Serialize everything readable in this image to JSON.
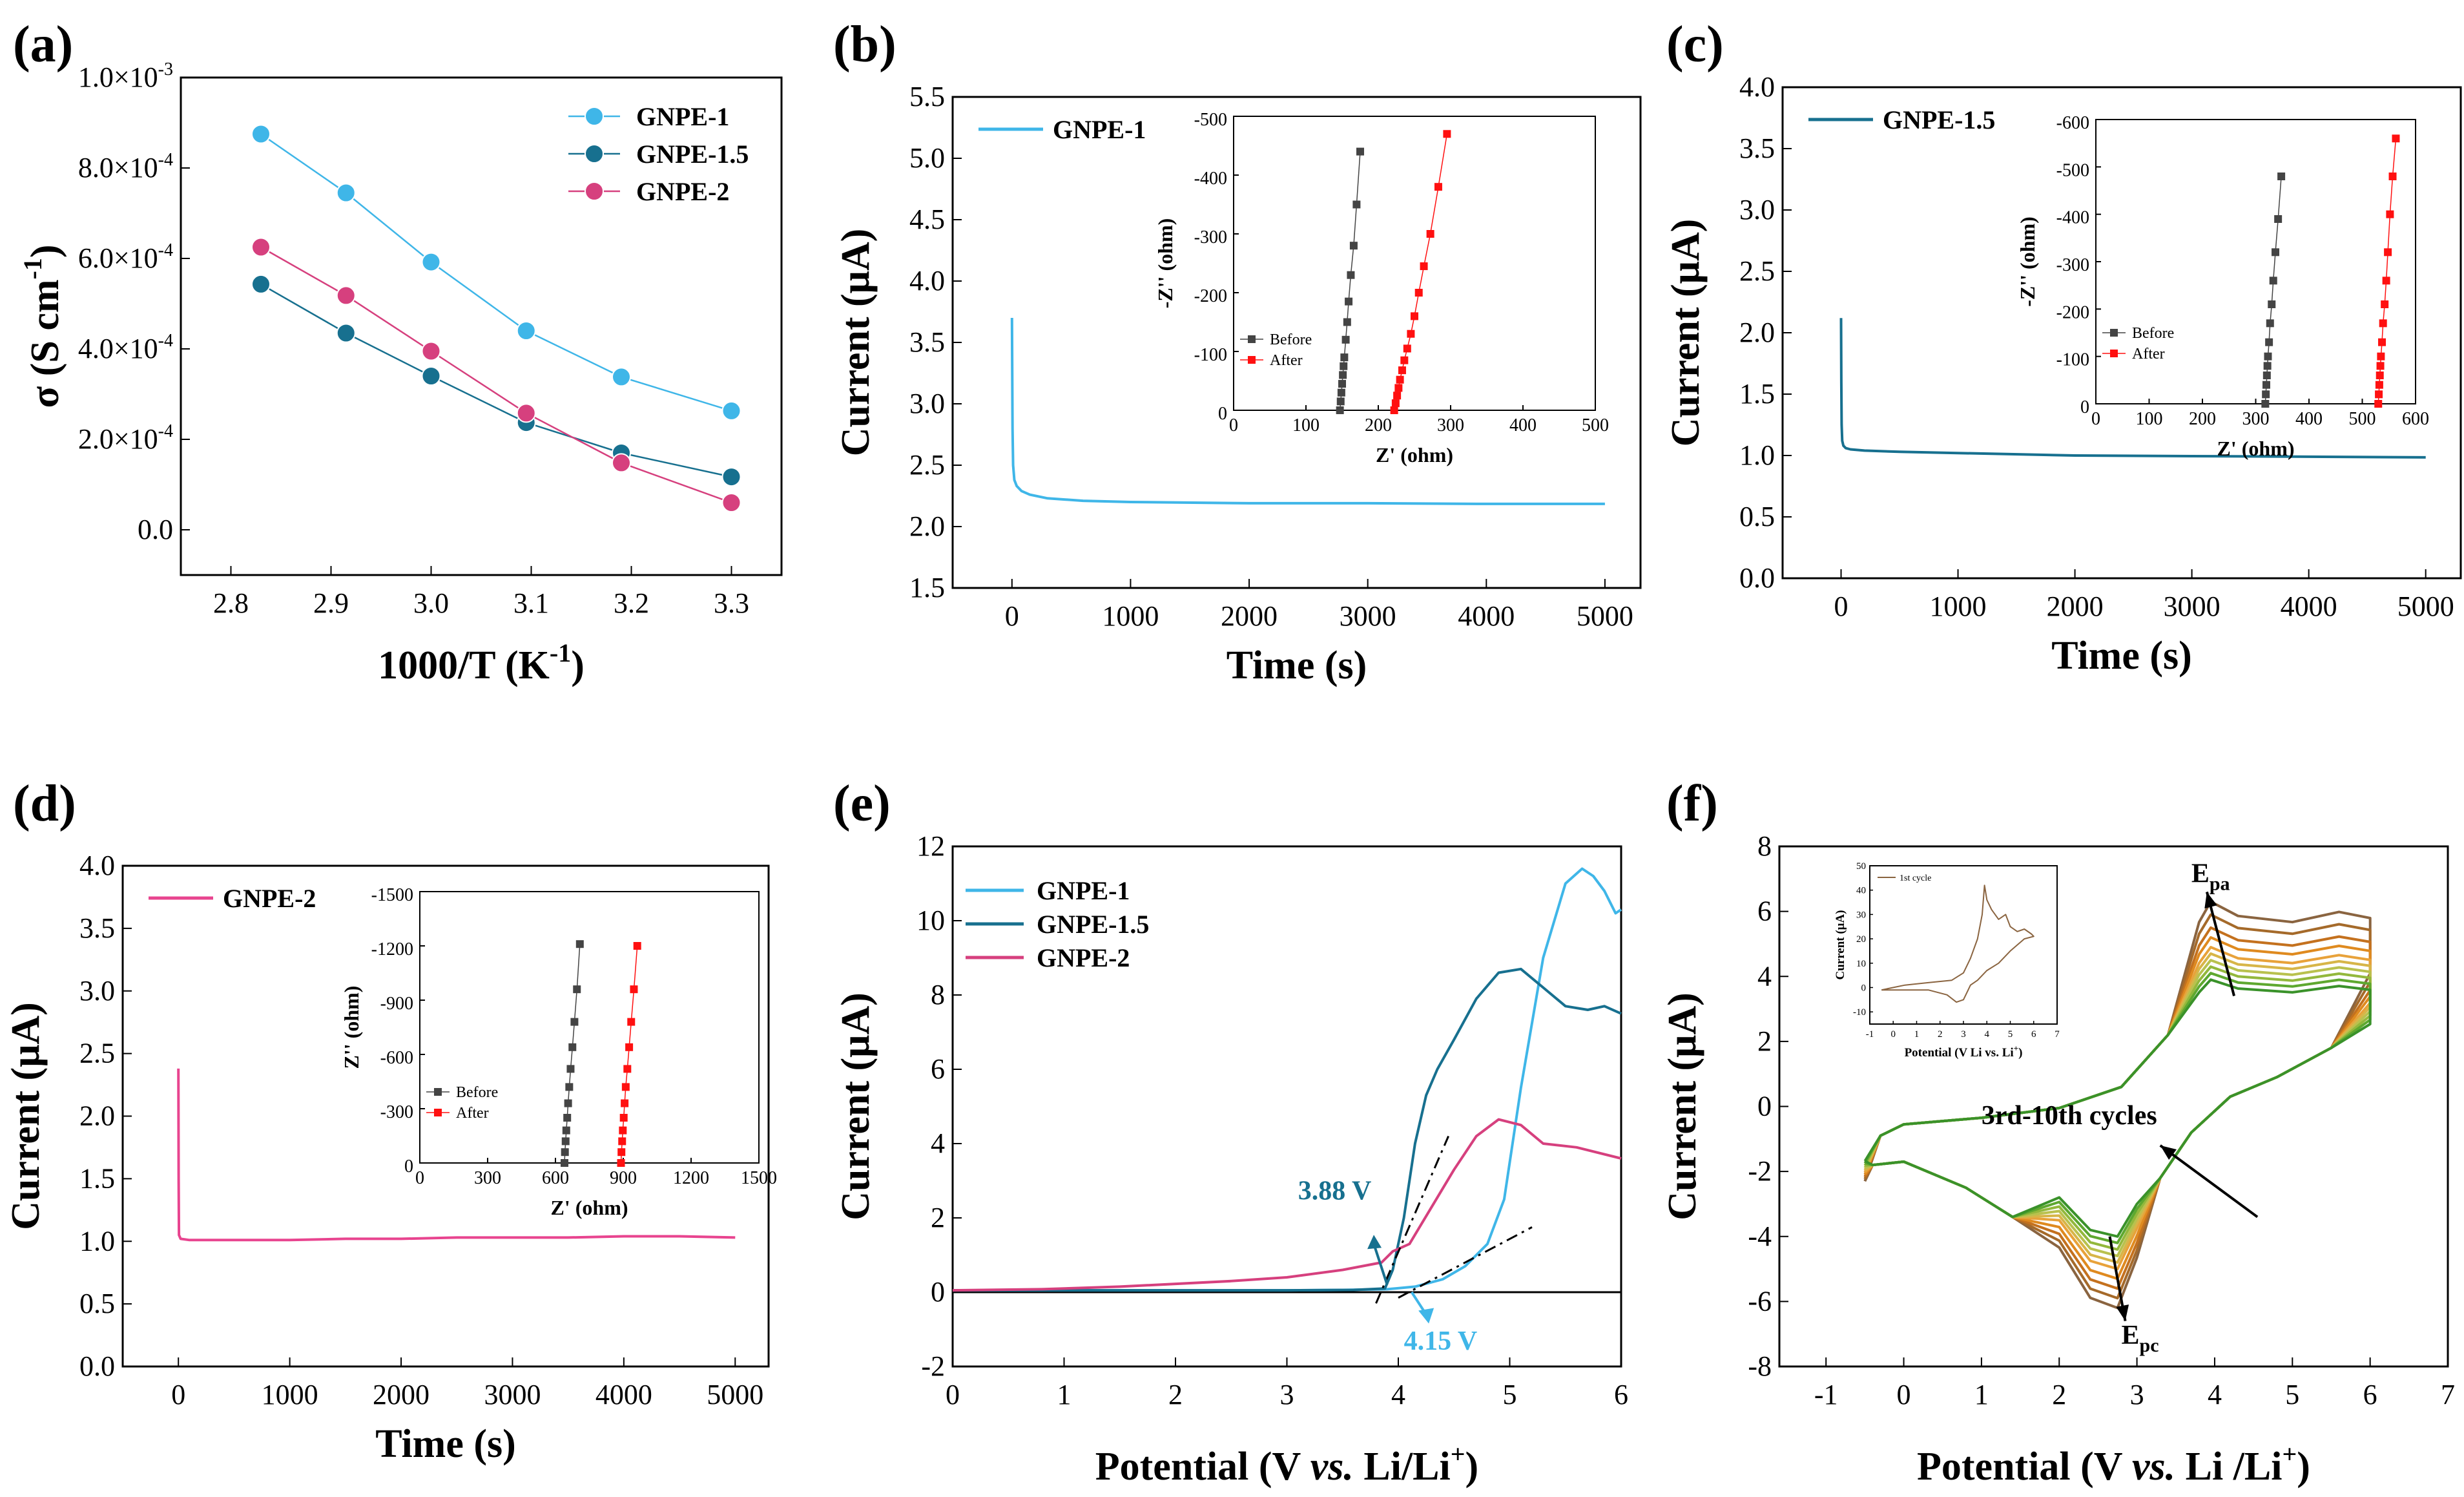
{
  "chart_data": [
    {
      "panel": "(a)",
      "type": "line",
      "xlabel": "1000/T (K",
      "xlabel_sup": "-1",
      "xlabel_tail": ")",
      "ylabel": "σ (S cm",
      "ylabel_sup": "-1",
      "ylabel_tail": ")",
      "xlim": [
        2.75,
        3.35
      ],
      "ylim": [
        -0.0001,
        0.001
      ],
      "xticks": [
        2.8,
        2.9,
        3.0,
        3.1,
        3.2,
        3.3
      ],
      "xtick_labels": [
        "2.8",
        "2.9",
        "3.0",
        "3.1",
        "3.2",
        "3.3"
      ],
      "yticks": [
        0,
        0.0002,
        0.0004,
        0.0006,
        0.0008,
        0.001
      ],
      "ytick_labels": [
        "0.0",
        "2.0×10",
        "4.0×10",
        "6.0×10",
        "8.0×10",
        "1.0×10"
      ],
      "ytick_exps": [
        "",
        "-4",
        "-4",
        "-4",
        "-4",
        "-3"
      ],
      "x": [
        2.83,
        2.915,
        3.0,
        3.095,
        3.19,
        3.3
      ],
      "series": [
        {
          "name": "GNPE-1",
          "color": "#3fb6e8",
          "values": [
            0.000875,
            0.000745,
            0.000592,
            0.00044,
            0.000338,
            0.000263
          ]
        },
        {
          "name": "GNPE-1.5",
          "color": "#17708f",
          "values": [
            0.000543,
            0.000435,
            0.00034,
            0.000237,
            0.00017,
            0.000117
          ]
        },
        {
          "name": "GNPE-2",
          "color": "#d6407e",
          "values": [
            0.000625,
            0.000518,
            0.000395,
            0.000258,
            0.000148,
            6e-05
          ]
        }
      ],
      "legend_position": "top-right"
    },
    {
      "panel": "(b)",
      "type": "line",
      "xlabel": "Time (s)",
      "ylabel": "Current (μA)",
      "xlim": [
        -500,
        5300
      ],
      "ylim": [
        1.5,
        5.5
      ],
      "xticks": [
        0,
        1000,
        2000,
        3000,
        4000,
        5000
      ],
      "xtick_labels": [
        "0",
        "1000",
        "2000",
        "3000",
        "4000",
        "5000"
      ],
      "yticks": [
        1.5,
        2.0,
        2.5,
        3.0,
        3.5,
        4.0,
        4.5,
        5.0,
        5.5
      ],
      "ytick_labels": [
        "1.5",
        "2.0",
        "2.5",
        "3.0",
        "3.5",
        "4.0",
        "4.5",
        "5.0",
        "5.5"
      ],
      "series": [
        {
          "name": "GNPE-1",
          "color": "#3fb6e8",
          "x": [
            0,
            2,
            5,
            10,
            20,
            40,
            80,
            150,
            300,
            600,
            1000,
            2000,
            3000,
            4000,
            5000
          ],
          "values": [
            3.7,
            3.3,
            2.8,
            2.5,
            2.38,
            2.33,
            2.29,
            2.26,
            2.23,
            2.21,
            2.2,
            2.19,
            2.19,
            2.185,
            2.185
          ]
        }
      ],
      "legend_position": "top-left",
      "inset": {
        "xlabel": "Z' (ohm)",
        "ylabel": "-Z'' (ohm)",
        "xlim": [
          0,
          500
        ],
        "ylim": [
          0,
          -500
        ],
        "xticks": [
          0,
          100,
          200,
          300,
          400,
          500
        ],
        "xtick_labels": [
          "0",
          "100",
          "200",
          "300",
          "400",
          "500"
        ],
        "yticks": [
          0,
          -100,
          -200,
          -300,
          -400,
          -500
        ],
        "ytick_labels": [
          "0",
          "-100",
          "-200",
          "-300",
          "-400",
          "-500"
        ],
        "series": [
          {
            "name": "Before",
            "color": "#444444",
            "x": [
              147,
              148,
              149,
              150,
              151,
              152,
              153,
              155,
              157,
              159,
              162,
              166,
              170,
              175
            ],
            "values": [
              0,
              -15,
              -30,
              -45,
              -60,
              -75,
              -90,
              -120,
              -150,
              -185,
              -230,
              -280,
              -350,
              -440
            ]
          },
          {
            "name": "After",
            "color": "#ff1010",
            "x": [
              222,
              224,
              226,
              228,
              230,
              233,
              236,
              240,
              245,
              250,
              256,
              263,
              272,
              283,
              295
            ],
            "values": [
              0,
              -12,
              -25,
              -38,
              -52,
              -68,
              -85,
              -105,
              -130,
              -160,
              -200,
              -245,
              -300,
              -380,
              -470
            ]
          }
        ]
      }
    },
    {
      "panel": "(c)",
      "type": "line",
      "xlabel": "Time (s)",
      "ylabel": "Current (μA)",
      "xlim": [
        -500,
        5300
      ],
      "ylim": [
        0,
        4.0
      ],
      "xticks": [
        0,
        1000,
        2000,
        3000,
        4000,
        5000
      ],
      "xtick_labels": [
        "0",
        "1000",
        "2000",
        "3000",
        "4000",
        "5000"
      ],
      "yticks": [
        0,
        0.5,
        1.0,
        1.5,
        2.0,
        2.5,
        3.0,
        3.5,
        4.0
      ],
      "ytick_labels": [
        "0.0",
        "0.5",
        "1.0",
        "1.5",
        "2.0",
        "2.5",
        "3.0",
        "3.5",
        "4.0"
      ],
      "series": [
        {
          "name": "GNPE-1.5",
          "color": "#17708f",
          "x": [
            0,
            2,
            5,
            10,
            20,
            40,
            80,
            200,
            500,
            1000,
            2000,
            3000,
            4000,
            5000
          ],
          "values": [
            2.12,
            1.6,
            1.25,
            1.12,
            1.08,
            1.06,
            1.05,
            1.04,
            1.03,
            1.02,
            1.0,
            0.995,
            0.99,
            0.985
          ]
        }
      ],
      "legend_position": "top-left",
      "inset": {
        "xlabel": "Z' (ohm)",
        "ylabel": "-Z'' (ohm)",
        "xlim": [
          0,
          600
        ],
        "ylim": [
          0,
          -600
        ],
        "xticks": [
          0,
          100,
          200,
          300,
          400,
          500,
          600
        ],
        "xtick_labels": [
          "0",
          "100",
          "200",
          "300",
          "400",
          "500",
          "600"
        ],
        "yticks": [
          0,
          -100,
          -200,
          -300,
          -400,
          -500,
          -600
        ],
        "ytick_labels": [
          "0",
          "-100",
          "-200",
          "-300",
          "-400",
          "-500",
          "-600"
        ],
        "series": [
          {
            "name": "Before",
            "color": "#444444",
            "x": [
              318,
              319,
              320,
              321,
              322,
              323,
              325,
              327,
              330,
              333,
              337,
              342,
              348
            ],
            "values": [
              0,
              -20,
              -40,
              -60,
              -80,
              -100,
              -130,
              -170,
              -210,
              -260,
              -320,
              -390,
              -480
            ]
          },
          {
            "name": "After",
            "color": "#ff1010",
            "x": [
              530,
              531,
              532,
              533,
              534,
              535,
              537,
              539,
              542,
              545,
              548,
              552,
              557,
              563
            ],
            "values": [
              0,
              -20,
              -40,
              -60,
              -80,
              -100,
              -130,
              -170,
              -210,
              -260,
              -320,
              -400,
              -480,
              -560
            ]
          }
        ]
      }
    },
    {
      "panel": "(d)",
      "type": "line",
      "xlabel": "Time (s)",
      "ylabel": "Current (μA)",
      "xlim": [
        -500,
        5300
      ],
      "ylim": [
        0,
        4.0
      ],
      "xticks": [
        0,
        1000,
        2000,
        3000,
        4000,
        5000
      ],
      "xtick_labels": [
        "0",
        "1000",
        "2000",
        "3000",
        "4000",
        "5000"
      ],
      "yticks": [
        0,
        0.5,
        1.0,
        1.5,
        2.0,
        2.5,
        3.0,
        3.5,
        4.0
      ],
      "ytick_labels": [
        "0.0",
        "0.5",
        "1.0",
        "1.5",
        "2.0",
        "2.5",
        "3.0",
        "3.5",
        "4.0"
      ],
      "series": [
        {
          "name": "GNPE-2",
          "color": "#e8448f",
          "x": [
            0,
            2,
            5,
            20,
            100,
            500,
            1000,
            1500,
            2000,
            2500,
            3000,
            3500,
            4000,
            4500,
            5000
          ],
          "values": [
            2.38,
            1.5,
            1.05,
            1.02,
            1.01,
            1.01,
            1.01,
            1.02,
            1.02,
            1.03,
            1.03,
            1.03,
            1.04,
            1.04,
            1.03
          ]
        }
      ],
      "legend_position": "top-left",
      "inset": {
        "xlabel": "Z' (ohm)",
        "ylabel": "Z'' (ohm)",
        "xlim": [
          0,
          1500
        ],
        "ylim": [
          0,
          -1500
        ],
        "xticks": [
          0,
          300,
          600,
          900,
          1200,
          1500
        ],
        "xtick_labels": [
          "0",
          "300",
          "600",
          "900",
          "1200",
          "1500"
        ],
        "yticks": [
          0,
          -300,
          -600,
          -900,
          -1200,
          -1500
        ],
        "ytick_labels": [
          "0",
          "-300",
          "-600",
          "-900",
          "-1200",
          "-1500"
        ],
        "series": [
          {
            "name": "Before",
            "color": "#444444",
            "x": [
              640,
              642,
              645,
              648,
              652,
              656,
              661,
              667,
              675,
              684,
              695,
              708
            ],
            "values": [
              0,
              -60,
              -120,
              -180,
              -250,
              -330,
              -420,
              -520,
              -640,
              -780,
              -960,
              -1210
            ]
          },
          {
            "name": "After",
            "color": "#ff1010",
            "x": [
              890,
              892,
              895,
              898,
              902,
              906,
              911,
              918,
              926,
              935,
              947,
              962
            ],
            "values": [
              0,
              -60,
              -120,
              -180,
              -250,
              -330,
              -420,
              -520,
              -640,
              -780,
              -960,
              -1200
            ]
          }
        ]
      }
    },
    {
      "panel": "(e)",
      "type": "line",
      "xlabel": "Potential (V ",
      "xlabel_italic": "vs.",
      "xlabel_tail": " Li/Li",
      "xlabel_sup": "+",
      "xlabel_end": ")",
      "ylabel": "Current (μA)",
      "xlim": [
        0,
        6
      ],
      "ylim": [
        -2,
        12
      ],
      "xticks": [
        0,
        1,
        2,
        3,
        4,
        5,
        6
      ],
      "xtick_labels": [
        "0",
        "1",
        "2",
        "3",
        "4",
        "5",
        "6"
      ],
      "yticks": [
        -2,
        0,
        2,
        4,
        6,
        8,
        10,
        12
      ],
      "ytick_labels": [
        "-2",
        "0",
        "2",
        "4",
        "6",
        "8",
        "10",
        "12"
      ],
      "series": [
        {
          "name": "GNPE-1",
          "color": "#3fb6e8",
          "x": [
            0,
            1,
            2,
            3,
            3.5,
            3.9,
            4.15,
            4.4,
            4.6,
            4.8,
            4.95,
            5.1,
            5.3,
            5.5,
            5.65,
            5.75,
            5.85,
            5.95,
            6.0
          ],
          "values": [
            0.05,
            0.05,
            0.05,
            0.05,
            0.06,
            0.08,
            0.15,
            0.35,
            0.7,
            1.3,
            2.5,
            5.5,
            9.0,
            11.0,
            11.4,
            11.2,
            10.8,
            10.2,
            10.3
          ]
        },
        {
          "name": "GNPE-1.5",
          "color": "#17708f",
          "x": [
            0,
            1,
            2,
            3,
            3.6,
            3.88,
            3.95,
            4.05,
            4.15,
            4.25,
            4.35,
            4.5,
            4.7,
            4.9,
            5.1,
            5.3,
            5.5,
            5.7,
            5.85,
            6.0
          ],
          "values": [
            0.05,
            0.05,
            0.05,
            0.05,
            0.06,
            0.1,
            0.6,
            2.0,
            4.0,
            5.3,
            6.0,
            6.8,
            7.9,
            8.6,
            8.7,
            8.2,
            7.7,
            7.6,
            7.7,
            7.5
          ]
        },
        {
          "name": "GNPE-2",
          "color": "#d6407e",
          "x": [
            0,
            0.8,
            1.5,
            2.5,
            3.0,
            3.5,
            3.85,
            3.95,
            4.1,
            4.3,
            4.5,
            4.7,
            4.9,
            5.1,
            5.3,
            5.6,
            6.0
          ],
          "values": [
            0.05,
            0.08,
            0.15,
            0.3,
            0.4,
            0.6,
            0.8,
            1.1,
            1.3,
            2.3,
            3.3,
            4.2,
            4.65,
            4.5,
            4.0,
            3.9,
            3.6
          ]
        }
      ],
      "legend_position": "top-left",
      "annotations": [
        {
          "text": "3.88 V",
          "x": 3.88,
          "y": 0.1,
          "color": "#17708f"
        },
        {
          "text": "4.15 V",
          "x": 4.15,
          "y": 0.1,
          "color": "#3fb6e8"
        }
      ]
    },
    {
      "panel": "(f)",
      "type": "line",
      "xlabel": "Potential (V ",
      "xlabel_italic": "vs.",
      "xlabel_tail": " Li /Li",
      "xlabel_sup": "+",
      "xlabel_end": ")",
      "ylabel": "Current (μA)",
      "xlim": [
        -1.6,
        7
      ],
      "ylim": [
        -8,
        8
      ],
      "xticks": [
        -1,
        0,
        1,
        2,
        3,
        4,
        5,
        6,
        7
      ],
      "xtick_labels": [
        "-1",
        "0",
        "1",
        "2",
        "3",
        "4",
        "5",
        "6",
        "7"
      ],
      "yticks": [
        -8,
        -6,
        -4,
        -2,
        0,
        2,
        4,
        6,
        8
      ],
      "ytick_labels": [
        "-8",
        "-6",
        "-4",
        "-2",
        "0",
        "2",
        "4",
        "6",
        "8"
      ],
      "cycle_colors": [
        "#8a6440",
        "#a56a2a",
        "#c4711e",
        "#df8a1f",
        "#e8a23a",
        "#d7b548",
        "#b9c14e",
        "#93b83c",
        "#5ea82f",
        "#3a922a"
      ],
      "anodic_peak_current": [
        6.3,
        5.9,
        5.5,
        5.2,
        4.9,
        4.7,
        4.5,
        4.3,
        4.1,
        3.9
      ],
      "cathodic_peak_current": [
        -6.2,
        -5.9,
        -5.6,
        -5.3,
        -5.0,
        -4.8,
        -4.6,
        -4.4,
        -4.2,
        -4.0
      ],
      "annotations": [
        {
          "text": "E",
          "sub": "pa"
        },
        {
          "text": "E",
          "sub": "pc"
        },
        {
          "text": "3rd-10th cycles"
        }
      ],
      "inset": {
        "xlabel": "Potential (V Li vs. Li",
        "xlabel_sup": "+",
        "xlabel_end": ")",
        "ylabel": "Current (μA)",
        "legend": "1st cycle",
        "color": "#8a6440",
        "xlim": [
          -1,
          7
        ],
        "ylim": [
          -15,
          50
        ],
        "xticks": [
          -1,
          0,
          1,
          2,
          3,
          4,
          5,
          6,
          7
        ],
        "xtick_labels": [
          "-1",
          "0",
          "1",
          "2",
          "3",
          "4",
          "5",
          "6",
          "7"
        ],
        "yticks": [
          -10,
          0,
          10,
          20,
          30,
          40,
          50
        ],
        "ytick_labels": [
          "-10",
          "0",
          "10",
          "20",
          "30",
          "40",
          "50"
        ],
        "x": [
          -0.5,
          0.5,
          1.5,
          2.5,
          3.0,
          3.3,
          3.6,
          3.8,
          3.9,
          4.0,
          4.2,
          4.5,
          4.8,
          5.0,
          5.3,
          5.6,
          5.9,
          6.0,
          5.6,
          5.0,
          4.5,
          4.0,
          3.6,
          3.3,
          3.0,
          2.7,
          2.3,
          1.5,
          0.5,
          -0.5
        ],
        "values": [
          -1,
          1,
          2,
          3,
          6,
          12,
          20,
          30,
          42,
          36,
          32,
          28,
          30,
          25,
          23,
          24,
          22,
          21,
          20,
          15,
          10,
          7,
          3,
          1,
          -5,
          -6,
          -3,
          -1,
          -1,
          -1
        ]
      }
    }
  ]
}
